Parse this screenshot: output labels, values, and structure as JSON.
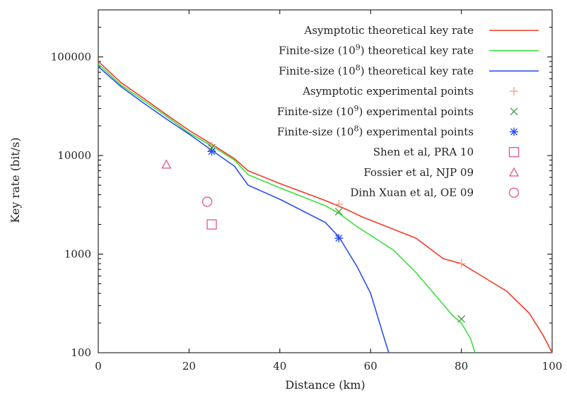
{
  "chart_data": {
    "type": "line",
    "title": "",
    "xlabel": "Distance (km)",
    "ylabel": "Key rate (bit/s)",
    "xlim": [
      0,
      100
    ],
    "ylim": [
      100,
      300000
    ],
    "yscale": "log",
    "grid": false,
    "legend_position": "top-right",
    "x_ticks": [
      {
        "value": 0,
        "label": "0"
      },
      {
        "value": 20,
        "label": "20"
      },
      {
        "value": 40,
        "label": "40"
      },
      {
        "value": 60,
        "label": "60"
      },
      {
        "value": 80,
        "label": "80"
      },
      {
        "value": 100,
        "label": "100"
      }
    ],
    "y_ticks": [
      {
        "value": 100,
        "label": "100"
      },
      {
        "value": 1000,
        "label": "1000"
      },
      {
        "value": 10000,
        "label": "10000"
      },
      {
        "value": 100000,
        "label": "100000"
      }
    ],
    "series": [
      {
        "name": "Asymptotic theoretical key rate",
        "kind": "line",
        "color": "#f03c28",
        "x": [
          0,
          5,
          10,
          15,
          20,
          25,
          30,
          33,
          40,
          50,
          55,
          58,
          70,
          76,
          80,
          85,
          90,
          95,
          98,
          100
        ],
        "y": [
          90000,
          55000,
          38000,
          26000,
          18000,
          13000,
          9300,
          7000,
          5200,
          3500,
          2800,
          2400,
          1450,
          900,
          800,
          580,
          420,
          250,
          150,
          100
        ]
      },
      {
        "name": "Finite-size (10^9) theoretical key rate",
        "kind": "line",
        "color": "#3ce03c",
        "x": [
          0,
          5,
          10,
          15,
          20,
          25,
          30,
          33,
          40,
          50,
          53,
          57,
          65,
          70,
          75,
          78,
          80,
          82,
          83
        ],
        "y": [
          85000,
          52000,
          36000,
          25000,
          17000,
          12500,
          9000,
          6400,
          4700,
          3100,
          2600,
          1900,
          1100,
          650,
          350,
          240,
          200,
          140,
          100
        ]
      },
      {
        "name": "Finite-size (10^8) theoretical key rate",
        "kind": "line",
        "color": "#2e4ff5",
        "x": [
          0,
          5,
          10,
          15,
          20,
          25,
          30,
          33,
          40,
          50,
          53,
          57,
          60,
          62,
          63,
          64
        ],
        "y": [
          80000,
          50000,
          34000,
          23500,
          16500,
          11300,
          7800,
          5000,
          3600,
          2100,
          1500,
          750,
          400,
          200,
          140,
          100
        ]
      },
      {
        "name": "Asymptotic experimental points",
        "kind": "points",
        "marker": "plus",
        "color": "#f5a28c",
        "x": [
          25,
          53,
          80
        ],
        "y": [
          12500,
          3200,
          800
        ]
      },
      {
        "name": "Finite-size (10^9) experimental points",
        "kind": "points",
        "marker": "cross",
        "color": "#4ca04c",
        "x": [
          25,
          53,
          80
        ],
        "y": [
          12000,
          2700,
          220
        ]
      },
      {
        "name": "Finite-size (10^8) experimental points",
        "kind": "points",
        "marker": "star",
        "color": "#2e4ff5",
        "x": [
          25,
          53
        ],
        "y": [
          11000,
          1450
        ]
      },
      {
        "name": "Shen et al, PRA 10",
        "kind": "points",
        "marker": "square",
        "color": "#e0609a",
        "x": [
          25
        ],
        "y": [
          2000
        ]
      },
      {
        "name": "Fossier et al, NJP 09",
        "kind": "points",
        "marker": "triangle",
        "color": "#e0609a",
        "x": [
          15
        ],
        "y": [
          8100
        ]
      },
      {
        "name": "Dinh Xuan et al, OE 09",
        "kind": "points",
        "marker": "circle",
        "color": "#e0609a",
        "x": [
          24
        ],
        "y": [
          3400
        ]
      }
    ],
    "legend": [
      {
        "prefix": "Asymptotic theoretical key rate",
        "exp": "",
        "suffix": "",
        "sample": "line",
        "series_index": 0
      },
      {
        "prefix": "Finite-size (10",
        "exp": "9",
        "suffix": ") theoretical key rate",
        "sample": "line",
        "series_index": 1
      },
      {
        "prefix": "Finite-size (10",
        "exp": "8",
        "suffix": ") theoretical key rate",
        "sample": "line",
        "series_index": 2
      },
      {
        "prefix": "Asymptotic experimental points",
        "exp": "",
        "suffix": "",
        "sample": "plus",
        "series_index": 3
      },
      {
        "prefix": "Finite-size (10",
        "exp": "9",
        "suffix": ") experimental points",
        "sample": "cross",
        "series_index": 4
      },
      {
        "prefix": "Finite-size (10",
        "exp": "8",
        "suffix": ") experimental points",
        "sample": "star",
        "series_index": 5
      },
      {
        "prefix": "Shen et al, PRA 10",
        "exp": "",
        "suffix": "",
        "sample": "square",
        "series_index": 6
      },
      {
        "prefix": "Fossier et al, NJP 09",
        "exp": "",
        "suffix": "",
        "sample": "triangle",
        "series_index": 7
      },
      {
        "prefix": "Dinh Xuan et al, OE 09",
        "exp": "",
        "suffix": "",
        "sample": "circle",
        "series_index": 8
      }
    ]
  }
}
